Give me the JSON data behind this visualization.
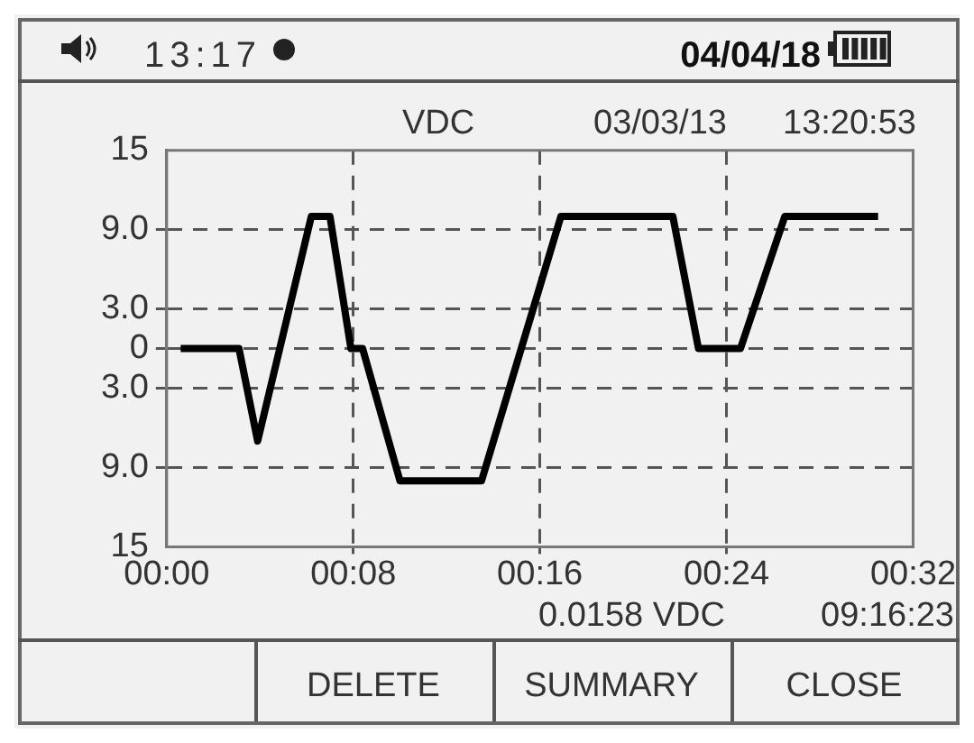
{
  "chart_data": {
    "type": "line",
    "x": [
      0.6,
      3.1,
      3.9,
      6.2,
      7.0,
      7.9,
      8.4,
      10.0,
      13.5,
      16.9,
      21.7,
      22.8,
      24.6,
      26.5,
      30.5
    ],
    "values": [
      0,
      0,
      -7,
      10,
      10,
      0,
      0,
      -10,
      -10,
      10,
      10,
      0,
      0,
      10,
      10
    ],
    "color": "#000000",
    "marker": "none",
    "line_style": "solid",
    "grid": true,
    "xlim": [
      0,
      32
    ],
    "xticks": [
      {
        "value": 0,
        "label": "00:00"
      },
      {
        "value": 8,
        "label": "00:08"
      },
      {
        "value": 16,
        "label": "00:16"
      },
      {
        "value": 24,
        "label": "00:24"
      },
      {
        "value": 32,
        "label": "00:32"
      }
    ],
    "ylim": [
      -15,
      15
    ],
    "yticks": [
      {
        "value": 15,
        "label": "15"
      },
      {
        "value": 9,
        "label": "9.0"
      },
      {
        "value": 3,
        "label": "3.0"
      },
      {
        "value": 0,
        "label": "0"
      },
      {
        "value": -3,
        "label": "3.0"
      },
      {
        "value": -9,
        "label": "9.0"
      },
      {
        "value": -15,
        "label": "15"
      }
    ],
    "annotations": [
      "VDC",
      "03/03/13",
      "13:20:53",
      "0.0158 VDC",
      "09:16:23",
      "13:17",
      "04/04/18",
      "DELETE",
      "SUMMARY",
      "CLOSE"
    ]
  }
}
